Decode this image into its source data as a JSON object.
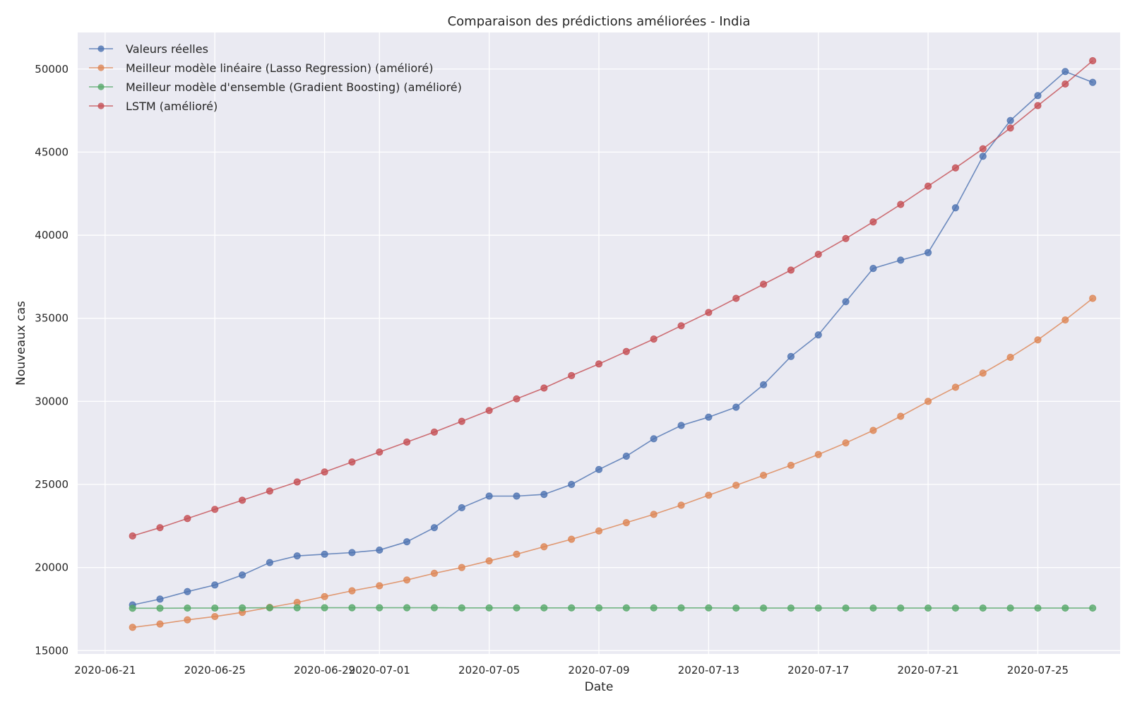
{
  "chart_data": {
    "type": "line",
    "title": "Comparaison des prédictions améliorées - India",
    "xlabel": "Date",
    "ylabel": "Nouveaux cas",
    "x_tick_labels": [
      "2020-06-21",
      "2020-06-25",
      "2020-06-29",
      "2020-07-01",
      "2020-07-05",
      "2020-07-09",
      "2020-07-13",
      "2020-07-17",
      "2020-07-21",
      "2020-07-25"
    ],
    "y_tick_labels": [
      "15000",
      "20000",
      "25000",
      "30000",
      "35000",
      "40000",
      "45000",
      "50000"
    ],
    "xlim": [
      "2020-06-20",
      "2020-07-28"
    ],
    "ylim": [
      14800,
      52200
    ],
    "grid": true,
    "legend_position": "top-left",
    "x": [
      "2020-06-22",
      "2020-06-23",
      "2020-06-24",
      "2020-06-25",
      "2020-06-26",
      "2020-06-27",
      "2020-06-28",
      "2020-06-29",
      "2020-06-30",
      "2020-07-01",
      "2020-07-02",
      "2020-07-03",
      "2020-07-04",
      "2020-07-05",
      "2020-07-06",
      "2020-07-07",
      "2020-07-08",
      "2020-07-09",
      "2020-07-10",
      "2020-07-11",
      "2020-07-12",
      "2020-07-13",
      "2020-07-14",
      "2020-07-15",
      "2020-07-16",
      "2020-07-17",
      "2020-07-18",
      "2020-07-19",
      "2020-07-20",
      "2020-07-21",
      "2020-07-22",
      "2020-07-23",
      "2020-07-24",
      "2020-07-25",
      "2020-07-26",
      "2020-07-27"
    ],
    "series": [
      {
        "name": "Valeurs réelles",
        "color": "#4c72b0",
        "values": [
          17750,
          18100,
          18550,
          18950,
          19550,
          20300,
          20700,
          20800,
          20900,
          21050,
          21550,
          22400,
          23600,
          24300,
          24300,
          24400,
          25000,
          25900,
          26700,
          27750,
          28550,
          29050,
          29650,
          31000,
          32700,
          34000,
          36000,
          38000,
          38500,
          38950,
          41650,
          44750,
          46900,
          48400,
          49850,
          49200
        ]
      },
      {
        "name": "Meilleur modèle linéaire (Lasso Regression) (amélioré)",
        "color": "#dd8452",
        "values": [
          16400,
          16600,
          16850,
          17050,
          17300,
          17600,
          17900,
          18250,
          18600,
          18900,
          19250,
          19650,
          20000,
          20400,
          20800,
          21250,
          21700,
          22200,
          22700,
          23200,
          23750,
          24350,
          24950,
          25550,
          26150,
          26800,
          27500,
          28250,
          29100,
          30000,
          30850,
          31700,
          32650,
          33700,
          34900,
          36200
        ]
      },
      {
        "name": "Meilleur modèle d'ensemble (Gradient Boosting) (amélioré)",
        "color": "#55a868",
        "values": [
          17550,
          17550,
          17560,
          17560,
          17570,
          17580,
          17580,
          17580,
          17580,
          17580,
          17580,
          17580,
          17570,
          17570,
          17570,
          17570,
          17570,
          17570,
          17570,
          17570,
          17570,
          17570,
          17560,
          17560,
          17560,
          17560,
          17560,
          17560,
          17560,
          17560,
          17560,
          17560,
          17560,
          17560,
          17560,
          17560
        ]
      },
      {
        "name": "LSTM (amélioré)",
        "color": "#c44e52",
        "values": [
          21900,
          22400,
          22950,
          23500,
          24050,
          24600,
          25150,
          25750,
          26350,
          26950,
          27550,
          28150,
          28800,
          29450,
          30150,
          30800,
          31550,
          32250,
          33000,
          33750,
          34550,
          35350,
          36200,
          37050,
          37900,
          38850,
          39800,
          40800,
          41850,
          42950,
          44050,
          45200,
          46450,
          47800,
          49100,
          50500
        ]
      }
    ]
  }
}
